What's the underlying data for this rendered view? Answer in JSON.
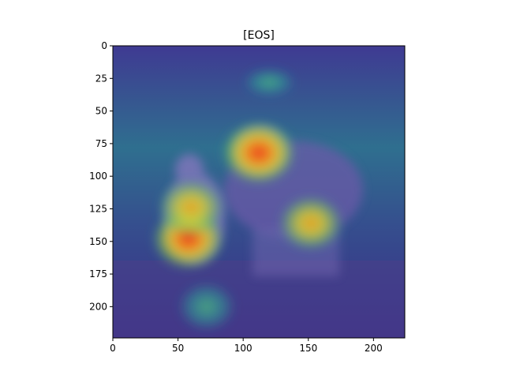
{
  "chart_data": {
    "type": "heatmap",
    "title": "[EOS]",
    "xlabel": "",
    "ylabel": "",
    "xlim": [
      0,
      224
    ],
    "ylim": [
      224,
      0
    ],
    "x_ticks": [
      0,
      50,
      100,
      150,
      200
    ],
    "y_ticks": [
      0,
      25,
      50,
      75,
      100,
      125,
      150,
      175,
      200
    ],
    "x_tick_labels": [
      "0",
      "50",
      "100",
      "150",
      "200"
    ],
    "y_tick_labels": [
      "0",
      "25",
      "50",
      "75",
      "100",
      "125",
      "150",
      "175",
      "200"
    ],
    "colormap": "jet",
    "background_scene": "two sheep standing in a grassy field",
    "hotspots": [
      {
        "name": "sheep-face",
        "x": 112,
        "y": 82,
        "intensity": 1.0
      },
      {
        "name": "lamb-rump-lower",
        "x": 58,
        "y": 148,
        "intensity": 0.95
      },
      {
        "name": "lamb-rump-upper",
        "x": 60,
        "y": 124,
        "intensity": 0.8
      },
      {
        "name": "sheep-belly-right",
        "x": 152,
        "y": 136,
        "intensity": 0.75
      },
      {
        "name": "ground-spot",
        "x": 72,
        "y": 200,
        "intensity": 0.55
      },
      {
        "name": "sky-glow",
        "x": 120,
        "y": 28,
        "intensity": 0.4
      }
    ],
    "grid": false
  },
  "colors": {
    "low": "#3b2a86",
    "mid": "#1fa39a",
    "high": "#e8331c",
    "axis": "#000000"
  }
}
